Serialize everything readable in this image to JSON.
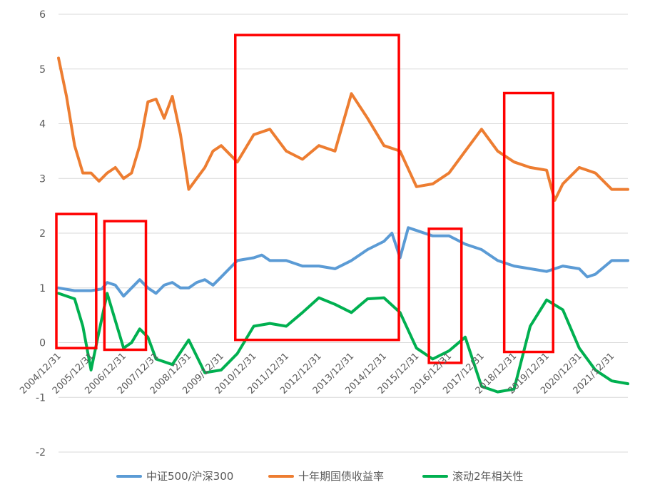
{
  "chart_data": {
    "type": "line",
    "ylim": [
      -2,
      6
    ],
    "yticks": [
      -2,
      -1,
      0,
      1,
      2,
      3,
      4,
      5,
      6
    ],
    "ytick_labels": [
      "-2",
      "-1",
      "0",
      "1",
      "2",
      "3",
      "4",
      "5",
      "6"
    ],
    "xlim": [
      "2004-12-31",
      "2022-06-30"
    ],
    "xticks": [
      "2004-12-31",
      "2005-12-31",
      "2006-12-31",
      "2007-12-31",
      "2008-12-31",
      "2009-12-31",
      "2010-12-31",
      "2011-12-31",
      "2012-12-31",
      "2013-12-31",
      "2014-12-31",
      "2015-12-31",
      "2016-12-31",
      "2017-12-31",
      "2018-12-31",
      "2019-12-31",
      "2020-12-31",
      "2021-12-31"
    ],
    "xtick_labels": [
      "2004/12/31",
      "2005/12/31",
      "2006/12/31",
      "2007/12/31",
      "2008/12/31",
      "2009/12/31",
      "2010/12/31",
      "2011/12/31",
      "2012/12/31",
      "2013/12/31",
      "2014/12/31",
      "2015/12/31",
      "2016/12/31",
      "2017/12/31",
      "2018/12/31",
      "2019/12/31",
      "2020/12/31",
      "2021/12/31"
    ],
    "grid": true,
    "legend_position": "bottom",
    "series": [
      {
        "name": "中证500/沪深300",
        "color": "#5B9BD5",
        "points": [
          [
            "2004-12-31",
            1.0
          ],
          [
            "2005-06-30",
            0.95
          ],
          [
            "2005-12-31",
            0.95
          ],
          [
            "2006-04-30",
            0.98
          ],
          [
            "2006-06-30",
            1.1
          ],
          [
            "2006-09-30",
            1.05
          ],
          [
            "2006-12-31",
            0.85
          ],
          [
            "2007-03-31",
            1.0
          ],
          [
            "2007-06-30",
            1.15
          ],
          [
            "2007-09-30",
            1.0
          ],
          [
            "2007-12-31",
            0.9
          ],
          [
            "2008-03-31",
            1.05
          ],
          [
            "2008-06-30",
            1.1
          ],
          [
            "2008-09-30",
            1.0
          ],
          [
            "2008-12-31",
            1.0
          ],
          [
            "2009-03-31",
            1.1
          ],
          [
            "2009-06-30",
            1.15
          ],
          [
            "2009-09-30",
            1.05
          ],
          [
            "2009-12-31",
            1.2
          ],
          [
            "2010-06-30",
            1.5
          ],
          [
            "2010-12-31",
            1.55
          ],
          [
            "2011-03-31",
            1.6
          ],
          [
            "2011-06-30",
            1.5
          ],
          [
            "2011-12-31",
            1.5
          ],
          [
            "2012-06-30",
            1.4
          ],
          [
            "2012-12-31",
            1.4
          ],
          [
            "2013-06-30",
            1.35
          ],
          [
            "2013-12-31",
            1.5
          ],
          [
            "2014-06-30",
            1.7
          ],
          [
            "2014-12-31",
            1.85
          ],
          [
            "2015-03-31",
            2.0
          ],
          [
            "2015-06-30",
            1.55
          ],
          [
            "2015-09-30",
            2.1
          ],
          [
            "2015-12-31",
            2.05
          ],
          [
            "2016-06-30",
            1.95
          ],
          [
            "2016-12-31",
            1.95
          ],
          [
            "2017-06-30",
            1.8
          ],
          [
            "2017-12-31",
            1.7
          ],
          [
            "2018-06-30",
            1.5
          ],
          [
            "2018-12-31",
            1.4
          ],
          [
            "2019-06-30",
            1.35
          ],
          [
            "2019-12-31",
            1.3
          ],
          [
            "2020-06-30",
            1.4
          ],
          [
            "2020-12-31",
            1.35
          ],
          [
            "2021-03-31",
            1.2
          ],
          [
            "2021-06-30",
            1.25
          ],
          [
            "2021-12-31",
            1.5
          ],
          [
            "2022-06-30",
            1.5
          ]
        ]
      },
      {
        "name": "十年期国债收益率",
        "color": "#ED7D31",
        "points": [
          [
            "2004-12-31",
            5.2
          ],
          [
            "2005-03-31",
            4.5
          ],
          [
            "2005-06-30",
            3.6
          ],
          [
            "2005-09-30",
            3.1
          ],
          [
            "2005-12-31",
            3.1
          ],
          [
            "2006-03-31",
            2.95
          ],
          [
            "2006-06-30",
            3.1
          ],
          [
            "2006-09-30",
            3.2
          ],
          [
            "2006-12-31",
            3.0
          ],
          [
            "2007-03-31",
            3.1
          ],
          [
            "2007-06-30",
            3.6
          ],
          [
            "2007-09-30",
            4.4
          ],
          [
            "2007-12-31",
            4.45
          ],
          [
            "2008-03-31",
            4.1
          ],
          [
            "2008-06-30",
            4.5
          ],
          [
            "2008-09-30",
            3.8
          ],
          [
            "2008-12-31",
            2.8
          ],
          [
            "2009-03-31",
            3.0
          ],
          [
            "2009-06-30",
            3.2
          ],
          [
            "2009-09-30",
            3.5
          ],
          [
            "2009-12-31",
            3.6
          ],
          [
            "2010-06-30",
            3.3
          ],
          [
            "2010-12-31",
            3.8
          ],
          [
            "2011-06-30",
            3.9
          ],
          [
            "2011-12-31",
            3.5
          ],
          [
            "2012-06-30",
            3.35
          ],
          [
            "2012-12-31",
            3.6
          ],
          [
            "2013-06-30",
            3.5
          ],
          [
            "2013-12-31",
            4.55
          ],
          [
            "2014-06-30",
            4.1
          ],
          [
            "2014-12-31",
            3.6
          ],
          [
            "2015-06-30",
            3.5
          ],
          [
            "2015-12-31",
            2.85
          ],
          [
            "2016-06-30",
            2.9
          ],
          [
            "2016-12-31",
            3.1
          ],
          [
            "2017-06-30",
            3.5
          ],
          [
            "2017-12-31",
            3.9
          ],
          [
            "2018-06-30",
            3.5
          ],
          [
            "2018-12-31",
            3.3
          ],
          [
            "2019-06-30",
            3.2
          ],
          [
            "2019-12-31",
            3.15
          ],
          [
            "2020-03-31",
            2.6
          ],
          [
            "2020-06-30",
            2.9
          ],
          [
            "2020-12-31",
            3.2
          ],
          [
            "2021-06-30",
            3.1
          ],
          [
            "2021-12-31",
            2.8
          ],
          [
            "2022-06-30",
            2.8
          ]
        ]
      },
      {
        "name": "滚动2年相关性",
        "color": "#00B050",
        "points": [
          [
            "2004-12-31",
            0.9
          ],
          [
            "2005-06-30",
            0.8
          ],
          [
            "2005-09-30",
            0.3
          ],
          [
            "2005-12-31",
            -0.5
          ],
          [
            "2006-03-31",
            0.2
          ],
          [
            "2006-06-30",
            0.9
          ],
          [
            "2006-09-30",
            0.4
          ],
          [
            "2006-12-31",
            -0.1
          ],
          [
            "2007-03-31",
            0.0
          ],
          [
            "2007-06-30",
            0.25
          ],
          [
            "2007-09-30",
            0.1
          ],
          [
            "2007-12-31",
            -0.3
          ],
          [
            "2008-06-30",
            -0.4
          ],
          [
            "2008-12-31",
            0.05
          ],
          [
            "2009-06-30",
            -0.55
          ],
          [
            "2009-12-31",
            -0.5
          ],
          [
            "2010-06-30",
            -0.2
          ],
          [
            "2010-12-31",
            0.3
          ],
          [
            "2011-06-30",
            0.35
          ],
          [
            "2011-12-31",
            0.3
          ],
          [
            "2012-06-30",
            0.55
          ],
          [
            "2012-12-31",
            0.82
          ],
          [
            "2013-06-30",
            0.7
          ],
          [
            "2013-12-31",
            0.55
          ],
          [
            "2014-06-30",
            0.8
          ],
          [
            "2014-12-31",
            0.82
          ],
          [
            "2015-06-30",
            0.55
          ],
          [
            "2015-12-31",
            -0.1
          ],
          [
            "2016-06-30",
            -0.3
          ],
          [
            "2016-12-31",
            -0.15
          ],
          [
            "2017-06-30",
            0.1
          ],
          [
            "2017-12-31",
            -0.8
          ],
          [
            "2018-06-30",
            -0.9
          ],
          [
            "2018-12-31",
            -0.85
          ],
          [
            "2019-06-30",
            0.3
          ],
          [
            "2019-12-31",
            0.78
          ],
          [
            "2020-06-30",
            0.6
          ],
          [
            "2020-12-31",
            -0.1
          ],
          [
            "2021-06-30",
            -0.5
          ],
          [
            "2021-12-31",
            -0.7
          ],
          [
            "2022-06-30",
            -0.75
          ]
        ]
      }
    ],
    "highlight_boxes": [
      {
        "x0": "2004-12-07",
        "x1": "2006-02-27",
        "y0": -0.1,
        "y1": 2.35
      },
      {
        "x0": "2006-05-30",
        "x1": "2007-09-08",
        "y0": -0.13,
        "y1": 2.22
      },
      {
        "x0": "2010-06-07",
        "x1": "2015-06-17",
        "y0": 0.05,
        "y1": 5.62
      },
      {
        "x0": "2016-05-19",
        "x1": "2017-05-19",
        "y0": -0.37,
        "y1": 2.08
      },
      {
        "x0": "2018-09-11",
        "x1": "2020-03-13",
        "y0": -0.17,
        "y1": 4.56
      }
    ]
  }
}
